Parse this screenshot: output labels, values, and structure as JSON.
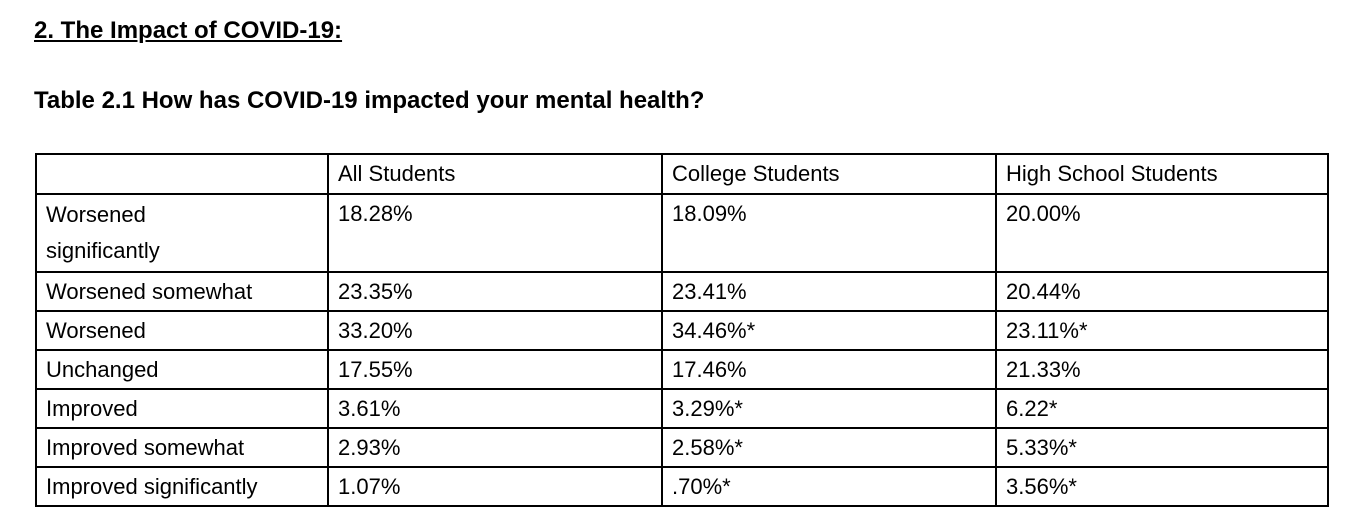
{
  "page": {
    "section_heading": "2. The Impact of COVID-19:",
    "table_title": "Table 2.1 How has COVID-19 impacted your mental health?"
  },
  "chart_data": {
    "type": "table",
    "title": "Table 2.1 How has COVID-19 impacted your mental health?",
    "columns": [
      "",
      "All Students",
      "College Students",
      "High School Students"
    ],
    "rows": [
      {
        "label": "Worsened significantly",
        "values": [
          "18.28%",
          "18.09%",
          "20.00%"
        ]
      },
      {
        "label": "Worsened somewhat",
        "values": [
          "23.35%",
          "23.41%",
          "20.44%"
        ]
      },
      {
        "label": "Worsened",
        "values": [
          "33.20%",
          "34.46%*",
          "23.11%*"
        ]
      },
      {
        "label": "Unchanged",
        "values": [
          "17.55%",
          "17.46%",
          "21.33%"
        ]
      },
      {
        "label": "Improved",
        "values": [
          "3.61%",
          "3.29%*",
          "6.22*"
        ]
      },
      {
        "label": "Improved somewhat",
        "values": [
          "2.93%",
          "2.58%*",
          "5.33%*"
        ]
      },
      {
        "label": "Improved significantly",
        "values": [
          "1.07%",
          ".70%*",
          "3.56%*"
        ]
      }
    ]
  }
}
